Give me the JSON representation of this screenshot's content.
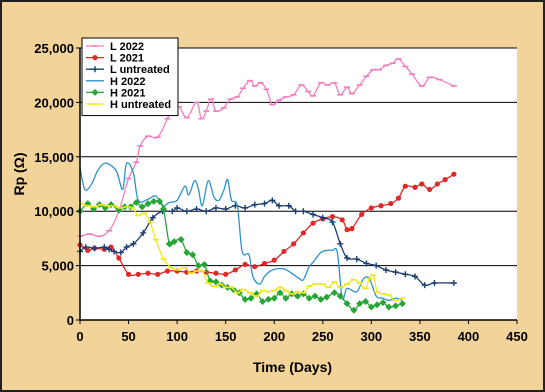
{
  "chart_data": {
    "type": "line",
    "title": "",
    "xlabel": "Time (Days)",
    "ylabel": "Rp (Ω)",
    "xlim": [
      0,
      450
    ],
    "ylim": [
      0,
      25000
    ],
    "xticks": [
      "0",
      "50",
      "100",
      "150",
      "200",
      "250",
      "300",
      "350",
      "400",
      "450"
    ],
    "yticks": [
      "0",
      "5,000",
      "10,000",
      "15,000",
      "20,000",
      "25,000"
    ],
    "grid": "horizontal",
    "legend_position": "top-left",
    "colors": {
      "background": "#f2d49a",
      "plot_area": "#ffffff",
      "gridline": "#000000"
    },
    "series": [
      {
        "name": "L 2022",
        "color": "#f17fbf",
        "marker": "dash",
        "points": [
          [
            0,
            7700
          ],
          [
            10,
            7900
          ],
          [
            20,
            7700
          ],
          [
            30,
            8200
          ],
          [
            40,
            10000
          ],
          [
            50,
            13000
          ],
          [
            58,
            14500
          ],
          [
            62,
            16000
          ],
          [
            70,
            16900
          ],
          [
            80,
            16800
          ],
          [
            90,
            18500
          ],
          [
            95,
            19700
          ],
          [
            102,
            19600
          ],
          [
            110,
            18600
          ],
          [
            120,
            20000
          ],
          [
            125,
            18500
          ],
          [
            130,
            19200
          ],
          [
            135,
            20300
          ],
          [
            140,
            19200
          ],
          [
            148,
            19500
          ],
          [
            155,
            20300
          ],
          [
            162,
            20500
          ],
          [
            168,
            21300
          ],
          [
            175,
            22000
          ],
          [
            180,
            21500
          ],
          [
            186,
            21800
          ],
          [
            192,
            21200
          ],
          [
            198,
            19800
          ],
          [
            205,
            20200
          ],
          [
            212,
            20500
          ],
          [
            220,
            20700
          ],
          [
            228,
            21600
          ],
          [
            235,
            21000
          ],
          [
            240,
            20600
          ],
          [
            248,
            21800
          ],
          [
            255,
            21600
          ],
          [
            262,
            21800
          ],
          [
            268,
            20700
          ],
          [
            275,
            21400
          ],
          [
            280,
            20800
          ],
          [
            288,
            21600
          ],
          [
            295,
            22400
          ],
          [
            302,
            23000
          ],
          [
            308,
            23000
          ],
          [
            315,
            23400
          ],
          [
            322,
            23600
          ],
          [
            328,
            24000
          ],
          [
            335,
            23300
          ],
          [
            342,
            22600
          ],
          [
            352,
            21500
          ],
          [
            360,
            22300
          ],
          [
            370,
            22100
          ],
          [
            385,
            21500
          ]
        ]
      },
      {
        "name": "L 2021",
        "color": "#e02828",
        "marker": "dot",
        "points": [
          [
            0,
            6900
          ],
          [
            8,
            6400
          ],
          [
            15,
            6600
          ],
          [
            25,
            6500
          ],
          [
            32,
            6700
          ],
          [
            40,
            5700
          ],
          [
            50,
            4200
          ],
          [
            60,
            4200
          ],
          [
            70,
            4300
          ],
          [
            80,
            4200
          ],
          [
            90,
            4500
          ],
          [
            100,
            4500
          ],
          [
            110,
            4400
          ],
          [
            120,
            4500
          ],
          [
            130,
            4400
          ],
          [
            140,
            4300
          ],
          [
            150,
            4200
          ],
          [
            160,
            4600
          ],
          [
            170,
            5100
          ],
          [
            180,
            4900
          ],
          [
            190,
            5200
          ],
          [
            200,
            5500
          ],
          [
            210,
            6300
          ],
          [
            220,
            7000
          ],
          [
            230,
            8000
          ],
          [
            240,
            8900
          ],
          [
            250,
            9300
          ],
          [
            260,
            9500
          ],
          [
            270,
            9200
          ],
          [
            275,
            8300
          ],
          [
            280,
            8400
          ],
          [
            290,
            9700
          ],
          [
            300,
            10300
          ],
          [
            310,
            10500
          ],
          [
            320,
            10700
          ],
          [
            328,
            11200
          ],
          [
            335,
            12300
          ],
          [
            345,
            12200
          ],
          [
            352,
            12500
          ],
          [
            360,
            12000
          ],
          [
            368,
            12500
          ],
          [
            376,
            12900
          ],
          [
            385,
            13400
          ]
        ]
      },
      {
        "name": "L untreated",
        "color": "#1a3e6e",
        "marker": "plus",
        "points": [
          [
            0,
            6300
          ],
          [
            6,
            6700
          ],
          [
            15,
            6600
          ],
          [
            25,
            6700
          ],
          [
            30,
            6500
          ],
          [
            35,
            6300
          ],
          [
            42,
            6200
          ],
          [
            48,
            6700
          ],
          [
            55,
            7000
          ],
          [
            65,
            8000
          ],
          [
            75,
            9400
          ],
          [
            85,
            10000
          ],
          [
            95,
            10000
          ],
          [
            100,
            10300
          ],
          [
            110,
            10000
          ],
          [
            120,
            10200
          ],
          [
            130,
            10000
          ],
          [
            140,
            10300
          ],
          [
            150,
            10200
          ],
          [
            160,
            10500
          ],
          [
            170,
            10300
          ],
          [
            180,
            10600
          ],
          [
            190,
            10700
          ],
          [
            198,
            11000
          ],
          [
            205,
            10500
          ],
          [
            215,
            10500
          ],
          [
            222,
            10000
          ],
          [
            230,
            10000
          ],
          [
            240,
            9700
          ],
          [
            250,
            9400
          ],
          [
            260,
            9000
          ],
          [
            268,
            7000
          ],
          [
            275,
            5700
          ],
          [
            285,
            5600
          ],
          [
            295,
            5200
          ],
          [
            305,
            5000
          ],
          [
            315,
            4600
          ],
          [
            325,
            4400
          ],
          [
            335,
            4200
          ],
          [
            345,
            4000
          ],
          [
            355,
            3200
          ],
          [
            365,
            3400
          ],
          [
            385,
            3400
          ]
        ]
      },
      {
        "name": "H 2022",
        "color": "#2e90cc",
        "marker": "none",
        "points": [
          [
            0,
            14000
          ],
          [
            5,
            12000
          ],
          [
            12,
            12500
          ],
          [
            18,
            13700
          ],
          [
            25,
            14400
          ],
          [
            32,
            14200
          ],
          [
            38,
            13600
          ],
          [
            44,
            12000
          ],
          [
            48,
            14400
          ],
          [
            55,
            13500
          ],
          [
            60,
            11000
          ],
          [
            70,
            11100
          ],
          [
            78,
            11400
          ],
          [
            85,
            10500
          ],
          [
            92,
            10800
          ],
          [
            100,
            11000
          ],
          [
            108,
            12300
          ],
          [
            112,
            11500
          ],
          [
            118,
            12800
          ],
          [
            122,
            12000
          ],
          [
            126,
            10500
          ],
          [
            132,
            12800
          ],
          [
            138,
            11300
          ],
          [
            143,
            11000
          ],
          [
            148,
            11900
          ],
          [
            152,
            12900
          ],
          [
            156,
            11000
          ],
          [
            162,
            10500
          ],
          [
            167,
            6300
          ],
          [
            174,
            6000
          ],
          [
            178,
            4000
          ],
          [
            185,
            3300
          ],
          [
            190,
            4000
          ],
          [
            196,
            4500
          ],
          [
            202,
            4700
          ],
          [
            210,
            4700
          ],
          [
            218,
            4300
          ],
          [
            226,
            3800
          ],
          [
            230,
            3700
          ],
          [
            236,
            4900
          ],
          [
            240,
            5300
          ],
          [
            248,
            6200
          ],
          [
            255,
            6400
          ],
          [
            260,
            6400
          ],
          [
            265,
            6200
          ],
          [
            270,
            2000
          ],
          [
            275,
            2900
          ],
          [
            285,
            2600
          ],
          [
            292,
            3800
          ],
          [
            298,
            3800
          ],
          [
            305,
            2200
          ],
          [
            312,
            2000
          ],
          [
            318,
            1800
          ],
          [
            325,
            2000
          ],
          [
            332,
            1800
          ]
        ]
      },
      {
        "name": "H 2021",
        "color": "#27a637",
        "marker": "diamond",
        "points": [
          [
            0,
            10000
          ],
          [
            8,
            10700
          ],
          [
            14,
            10200
          ],
          [
            20,
            10600
          ],
          [
            26,
            10300
          ],
          [
            32,
            10600
          ],
          [
            40,
            10100
          ],
          [
            46,
            10400
          ],
          [
            52,
            10400
          ],
          [
            58,
            10800
          ],
          [
            64,
            10400
          ],
          [
            70,
            10700
          ],
          [
            76,
            10900
          ],
          [
            82,
            10900
          ],
          [
            86,
            10200
          ],
          [
            92,
            7000
          ],
          [
            97,
            7200
          ],
          [
            104,
            7400
          ],
          [
            110,
            6200
          ],
          [
            116,
            6000
          ],
          [
            122,
            5000
          ],
          [
            128,
            5100
          ],
          [
            134,
            3600
          ],
          [
            140,
            3500
          ],
          [
            146,
            3200
          ],
          [
            152,
            3000
          ],
          [
            158,
            2800
          ],
          [
            164,
            2500
          ],
          [
            170,
            1900
          ],
          [
            176,
            2000
          ],
          [
            182,
            2400
          ],
          [
            188,
            1700
          ],
          [
            194,
            1900
          ],
          [
            200,
            2000
          ],
          [
            206,
            2500
          ],
          [
            212,
            2000
          ],
          [
            218,
            2400
          ],
          [
            224,
            2200
          ],
          [
            230,
            2400
          ],
          [
            236,
            2000
          ],
          [
            242,
            2200
          ],
          [
            248,
            1900
          ],
          [
            254,
            2100
          ],
          [
            262,
            2500
          ],
          [
            268,
            2200
          ],
          [
            275,
            1500
          ],
          [
            282,
            900
          ],
          [
            288,
            1500
          ],
          [
            294,
            1700
          ],
          [
            300,
            1200
          ],
          [
            306,
            1400
          ],
          [
            312,
            1600
          ],
          [
            318,
            1200
          ],
          [
            325,
            1300
          ],
          [
            332,
            1500
          ]
        ]
      },
      {
        "name": "H  untreated",
        "color": "#f3e618",
        "marker": "dash",
        "points": [
          [
            0,
            10700
          ],
          [
            8,
            10500
          ],
          [
            15,
            10400
          ],
          [
            22,
            10600
          ],
          [
            28,
            10500
          ],
          [
            35,
            10500
          ],
          [
            42,
            10300
          ],
          [
            48,
            10400
          ],
          [
            54,
            10300
          ],
          [
            60,
            9600
          ],
          [
            66,
            9800
          ],
          [
            72,
            9000
          ],
          [
            78,
            7400
          ],
          [
            86,
            5600
          ],
          [
            94,
            4800
          ],
          [
            100,
            4600
          ],
          [
            108,
            4800
          ],
          [
            114,
            4300
          ],
          [
            120,
            4500
          ],
          [
            126,
            4500
          ],
          [
            132,
            3400
          ],
          [
            138,
            3100
          ],
          [
            144,
            3300
          ],
          [
            150,
            3000
          ],
          [
            156,
            3000
          ],
          [
            162,
            2500
          ],
          [
            168,
            2800
          ],
          [
            175,
            2500
          ],
          [
            182,
            2200
          ],
          [
            188,
            2700
          ],
          [
            194,
            2600
          ],
          [
            200,
            2700
          ],
          [
            206,
            3000
          ],
          [
            212,
            2700
          ],
          [
            218,
            2400
          ],
          [
            224,
            2600
          ],
          [
            230,
            2500
          ],
          [
            236,
            3100
          ],
          [
            242,
            3300
          ],
          [
            250,
            3300
          ],
          [
            256,
            3000
          ],
          [
            262,
            3500
          ],
          [
            268,
            3000
          ],
          [
            275,
            3300
          ],
          [
            282,
            3700
          ],
          [
            288,
            3400
          ],
          [
            294,
            2900
          ],
          [
            298,
            3800
          ],
          [
            302,
            4100
          ],
          [
            306,
            2600
          ],
          [
            312,
            2400
          ],
          [
            318,
            2300
          ],
          [
            325,
            1800
          ],
          [
            332,
            2000
          ]
        ]
      }
    ]
  }
}
